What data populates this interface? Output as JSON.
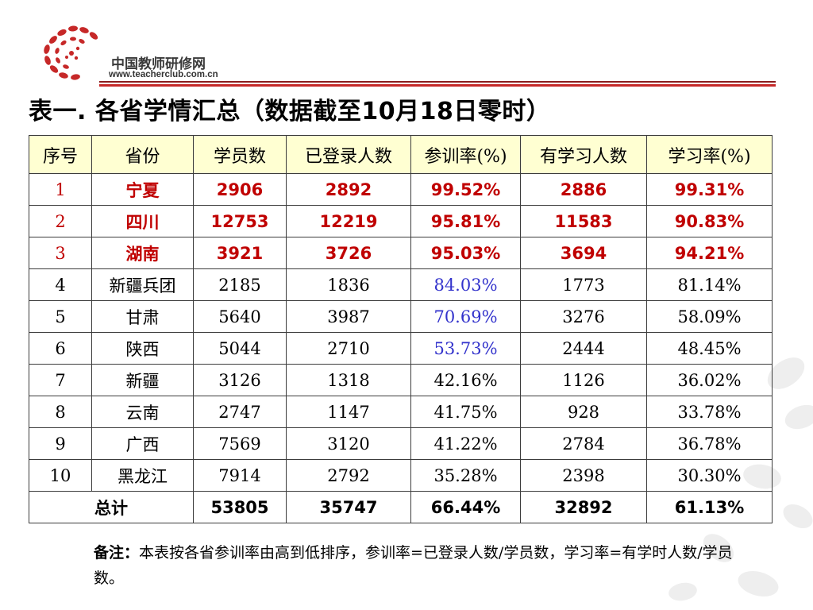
{
  "brand": {
    "name": "中国教师研修网",
    "url": "www.teacherclub.com.cn",
    "accent_color": "#c62828",
    "dark_color": "#8a1c1c"
  },
  "title": "表一. 各省学情汇总（数据截至10月18日零时）",
  "table": {
    "headers": [
      "序号",
      "省份",
      "学员数",
      "已登录人数",
      "参训率(%)",
      "有学习人数",
      "学习率(%)"
    ],
    "rows": [
      [
        "1",
        "宁夏",
        "2906",
        "2892",
        "99.52%",
        "2886",
        "99.31%"
      ],
      [
        "2",
        "四川",
        "12753",
        "12219",
        "95.81%",
        "11583",
        "90.83%"
      ],
      [
        "3",
        "湖南",
        "3921",
        "3726",
        "95.03%",
        "3694",
        "94.21%"
      ],
      [
        "4",
        "新疆兵团",
        "2185",
        "1836",
        "84.03%",
        "1773",
        "81.14%"
      ],
      [
        "5",
        "甘肃",
        "5640",
        "3987",
        "70.69%",
        "3276",
        "58.09%"
      ],
      [
        "6",
        "陕西",
        "5044",
        "2710",
        "53.73%",
        "2444",
        "48.45%"
      ],
      [
        "7",
        "新疆",
        "3126",
        "1318",
        "42.16%",
        "1126",
        "36.02%"
      ],
      [
        "8",
        "云南",
        "2747",
        "1147",
        "41.75%",
        "928",
        "33.78%"
      ],
      [
        "9",
        "广西",
        "7569",
        "3120",
        "41.22%",
        "2784",
        "36.78%"
      ],
      [
        "10",
        "黑龙江",
        "7914",
        "2792",
        "35.28%",
        "2398",
        "30.30%"
      ]
    ],
    "total": [
      "总计",
      "53805",
      "35747",
      "66.44%",
      "32892",
      "61.13%"
    ],
    "header_bg": "#ffffd2",
    "highlight_top_color": "#c00000",
    "highlight_rate_color": "#3333cc"
  },
  "note": {
    "label": "备注：",
    "text": "本表按各省参训率由高到低排序，参训率=已登录人数/学员数，学习率=有学时人数/学员数。"
  }
}
